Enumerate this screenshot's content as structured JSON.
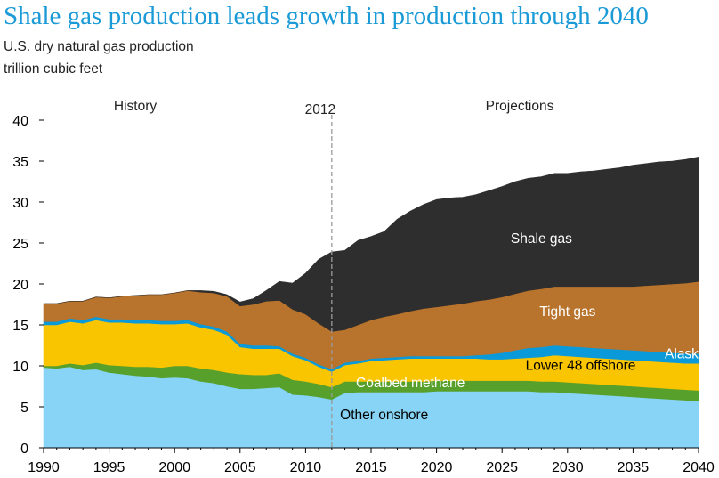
{
  "chart_data": {
    "type": "area",
    "stacked": true,
    "title": "Shale gas production leads growth in production through 2040",
    "subtitle": "U.S. dry natural gas production",
    "units": "trillion cubic feet",
    "ylim": [
      0,
      40
    ],
    "y_ticks": [
      "0",
      "5",
      "10",
      "15",
      "20",
      "25",
      "30",
      "35",
      "40"
    ],
    "xlim": [
      1990,
      2040
    ],
    "x_ticks": [
      "1990",
      "1995",
      "2000",
      "2005",
      "2010",
      "2015",
      "2020",
      "2025",
      "2030",
      "2035",
      "2040"
    ],
    "divider": {
      "x": 2012,
      "label": "2012"
    },
    "region_labels": {
      "history": "History",
      "projections": "Projections"
    },
    "years": [
      1990,
      1991,
      1992,
      1993,
      1994,
      1995,
      1996,
      1997,
      1998,
      1999,
      2000,
      2001,
      2002,
      2003,
      2004,
      2005,
      2006,
      2007,
      2008,
      2009,
      2010,
      2011,
      2012,
      2013,
      2014,
      2015,
      2016,
      2017,
      2018,
      2019,
      2020,
      2021,
      2022,
      2023,
      2024,
      2025,
      2026,
      2027,
      2028,
      2029,
      2030,
      2031,
      2032,
      2033,
      2034,
      2035,
      2036,
      2037,
      2038,
      2039,
      2040
    ],
    "series": [
      {
        "name": "Other onshore",
        "color": "#87d4f6",
        "label_year": 2016,
        "label_y": 3.5,
        "label_color": "#000000",
        "values": [
          9.8,
          9.7,
          9.9,
          9.5,
          9.6,
          9.2,
          9.0,
          8.8,
          8.7,
          8.5,
          8.6,
          8.5,
          8.1,
          7.9,
          7.5,
          7.2,
          7.2,
          7.3,
          7.4,
          6.5,
          6.4,
          6.2,
          5.9,
          6.7,
          6.8,
          6.8,
          6.8,
          6.8,
          6.8,
          6.8,
          6.9,
          6.9,
          6.9,
          6.9,
          6.9,
          6.9,
          6.9,
          6.9,
          6.8,
          6.8,
          6.7,
          6.6,
          6.5,
          6.4,
          6.3,
          6.2,
          6.1,
          6.0,
          5.9,
          5.8,
          5.7
        ]
      },
      {
        "name": "Coalbed methane",
        "color": "#58a02c",
        "label_year": 2018,
        "label_y": 7.4,
        "label_color": "#ffffff",
        "values": [
          0.2,
          0.3,
          0.4,
          0.6,
          0.8,
          0.9,
          1.0,
          1.1,
          1.2,
          1.3,
          1.4,
          1.5,
          1.6,
          1.6,
          1.7,
          1.8,
          1.7,
          1.6,
          1.7,
          1.8,
          1.7,
          1.6,
          1.5,
          1.4,
          1.3,
          1.3,
          1.3,
          1.3,
          1.3,
          1.3,
          1.3,
          1.3,
          1.3,
          1.3,
          1.3,
          1.3,
          1.3,
          1.3,
          1.3,
          1.3,
          1.3,
          1.3,
          1.3,
          1.3,
          1.3,
          1.3,
          1.3,
          1.3,
          1.3,
          1.3,
          1.3
        ]
      },
      {
        "name": "Lower 48 offshore",
        "color": "#f9c400",
        "label_year": 2031,
        "label_y": 9.5,
        "label_color": "#000000",
        "values": [
          5.0,
          5.0,
          5.1,
          5.1,
          5.2,
          5.2,
          5.3,
          5.3,
          5.3,
          5.3,
          5.1,
          5.2,
          5.0,
          4.9,
          4.6,
          3.3,
          3.2,
          3.2,
          3.0,
          2.9,
          2.6,
          2.1,
          1.9,
          2.0,
          2.2,
          2.5,
          2.6,
          2.7,
          2.8,
          2.8,
          2.7,
          2.7,
          2.7,
          2.7,
          2.6,
          2.6,
          2.7,
          2.8,
          3.0,
          3.2,
          3.2,
          3.2,
          3.2,
          3.2,
          3.2,
          3.2,
          3.2,
          3.2,
          3.2,
          3.2,
          3.3
        ]
      },
      {
        "name": "Alaska",
        "color": "#0a9ad9",
        "label_year": 2039,
        "label_y": 10.9,
        "label_color": "#ffffff",
        "values": [
          0.4,
          0.4,
          0.4,
          0.4,
          0.4,
          0.4,
          0.4,
          0.4,
          0.4,
          0.4,
          0.4,
          0.4,
          0.4,
          0.4,
          0.4,
          0.4,
          0.4,
          0.4,
          0.3,
          0.3,
          0.3,
          0.3,
          0.3,
          0.3,
          0.3,
          0.3,
          0.3,
          0.3,
          0.3,
          0.3,
          0.3,
          0.3,
          0.3,
          0.4,
          0.6,
          0.8,
          1.0,
          1.2,
          1.2,
          1.2,
          1.2,
          1.2,
          1.2,
          1.2,
          1.2,
          1.2,
          1.2,
          1.2,
          1.2,
          1.2,
          1.2
        ]
      },
      {
        "name": "Tight gas",
        "color": "#b8732c",
        "label_year": 2030,
        "label_y": 16.1,
        "label_color": "#ffffff",
        "values": [
          2.2,
          2.2,
          2.1,
          2.3,
          2.4,
          2.6,
          2.8,
          3.0,
          3.1,
          3.2,
          3.4,
          3.6,
          3.9,
          4.1,
          4.3,
          4.6,
          5.0,
          5.4,
          5.6,
          5.4,
          5.3,
          5.0,
          4.6,
          4.0,
          4.4,
          4.7,
          5.0,
          5.2,
          5.5,
          5.8,
          6.0,
          6.2,
          6.4,
          6.6,
          6.7,
          6.8,
          6.9,
          7.0,
          7.1,
          7.2,
          7.3,
          7.4,
          7.5,
          7.6,
          7.7,
          7.8,
          8.0,
          8.2,
          8.4,
          8.6,
          8.8
        ]
      },
      {
        "name": "Shale gas",
        "color": "#2e2e2e",
        "label_year": 2028,
        "label_y": 25.0,
        "label_color": "#ffffff",
        "values": [
          0.0,
          0.0,
          0.0,
          0.0,
          0.0,
          0.0,
          0.0,
          0.0,
          0.0,
          0.0,
          0.0,
          0.0,
          0.2,
          0.2,
          0.2,
          0.5,
          0.7,
          1.3,
          2.3,
          3.2,
          5.0,
          7.8,
          9.7,
          9.7,
          10.3,
          10.2,
          10.4,
          11.6,
          12.2,
          12.7,
          13.1,
          13.1,
          13.0,
          13.0,
          13.3,
          13.5,
          13.7,
          13.7,
          13.7,
          13.8,
          13.8,
          14.0,
          14.1,
          14.3,
          14.5,
          14.8,
          14.9,
          15.0,
          15.0,
          15.1,
          15.2
        ]
      }
    ],
    "grid": false,
    "legend": "none"
  }
}
